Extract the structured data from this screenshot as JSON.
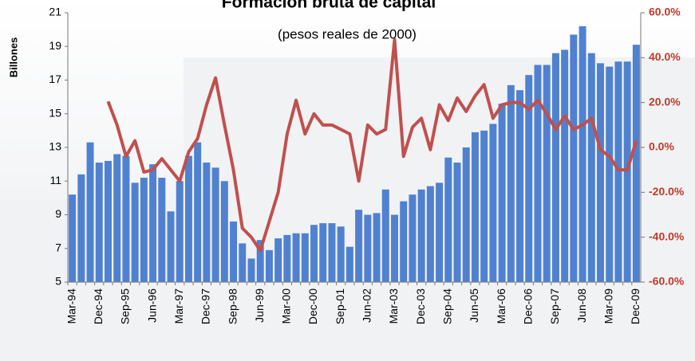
{
  "chart_data": {
    "type": "bar_line",
    "title": "Formación bruta de capital",
    "subtitle": "(pesos reales de 2000)",
    "y_label": "Billones",
    "categories": [
      "Mar-94",
      null,
      null,
      "Dec-94",
      null,
      null,
      "Sep-95",
      null,
      null,
      "Jun-96",
      null,
      null,
      "Mar-97",
      null,
      null,
      "Dec-97",
      null,
      null,
      "Sep-98",
      null,
      null,
      "Jun-99",
      null,
      null,
      "Mar-00",
      null,
      null,
      "Dec-00",
      null,
      null,
      "Sep-01",
      null,
      null,
      "Jun-02",
      null,
      null,
      "Mar-03",
      null,
      null,
      "Dec-03",
      null,
      null,
      "Sep-04",
      null,
      null,
      "Jun-05",
      null,
      null,
      "Mar-06",
      null,
      null,
      "Dec-06",
      null,
      null,
      "Sep-07",
      null,
      null,
      "Jun-08",
      null,
      null,
      "Mar-09",
      null,
      null,
      "Dec-09"
    ],
    "series": [
      {
        "type": "bar",
        "color": "#4f81d0",
        "values": [
          10.2,
          11.4,
          13.3,
          12.1,
          12.2,
          12.6,
          12.5,
          10.9,
          11.2,
          12.0,
          11.2,
          9.2,
          11.0,
          12.5,
          13.3,
          12.1,
          11.8,
          11.0,
          8.6,
          7.3,
          6.4,
          7.5,
          6.9,
          7.6,
          7.8,
          7.9,
          7.9,
          8.4,
          8.5,
          8.5,
          8.3,
          7.1,
          9.3,
          9.0,
          9.1,
          10.5,
          9.0,
          9.8,
          10.2,
          10.5,
          10.7,
          10.9,
          12.4,
          12.1,
          13.0,
          13.9,
          14.0,
          14.4,
          15.6,
          16.7,
          16.4,
          17.3,
          17.9,
          17.9,
          18.6,
          18.8,
          19.7,
          20.2,
          18.6,
          18.0,
          17.8,
          18.1,
          18.1,
          19.1
        ]
      },
      {
        "type": "line",
        "axis": "y2",
        "color": "#c0504d",
        "values": [
          null,
          null,
          null,
          null,
          20.5,
          10,
          -4,
          3,
          -11,
          -10,
          -5,
          -10,
          -15,
          -2,
          4,
          19,
          31,
          10,
          -10,
          -36,
          -40,
          -46,
          -33,
          -20,
          6,
          21,
          6,
          15,
          10,
          10,
          8,
          6,
          -15,
          10,
          6,
          8,
          48,
          -4,
          9,
          13,
          -1,
          19,
          12,
          22,
          16,
          23,
          28,
          13,
          19,
          20,
          20,
          17,
          21,
          15,
          8,
          14,
          8,
          10,
          13,
          -1,
          -4,
          -10,
          -10,
          3
        ]
      }
    ],
    "ylim": [
      5,
      21
    ],
    "yticks": [
      5,
      7,
      9,
      11,
      13,
      15,
      17,
      19,
      21
    ],
    "y2lim": [
      -60,
      60
    ],
    "y2ticks": [
      {
        "value": -60,
        "label": "-60.0%"
      },
      {
        "value": -40,
        "label": "-40.0%"
      },
      {
        "value": -20,
        "label": "-20.0%"
      },
      {
        "value": 0,
        "label": "0.0%"
      },
      {
        "value": 20,
        "label": "20.0%"
      },
      {
        "value": 40,
        "label": "40.0%"
      },
      {
        "value": 60,
        "label": "60.0%"
      }
    ],
    "grid": false
  }
}
